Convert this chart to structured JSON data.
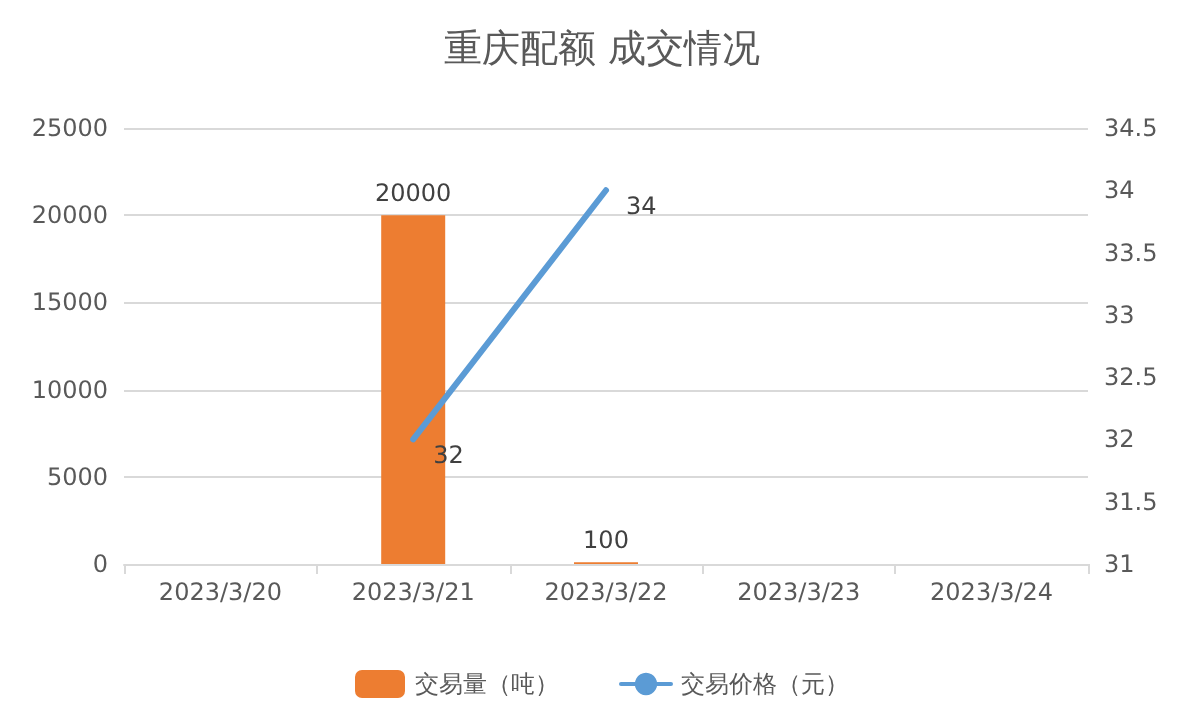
{
  "chart_data": {
    "type": "bar",
    "title": "重庆配额 成交情况",
    "categories": [
      "2023/3/20",
      "2023/3/21",
      "2023/3/22",
      "2023/3/23",
      "2023/3/24"
    ],
    "series": [
      {
        "name": "交易量（吨）",
        "type": "bar",
        "color": "#ed7d31",
        "values": [
          null,
          20000,
          100,
          null,
          null
        ]
      },
      {
        "name": "交易价格（元）",
        "type": "line",
        "axis": "y2",
        "color": "#5b9bd5",
        "values": [
          null,
          32,
          34,
          null,
          null
        ]
      }
    ],
    "ylim": [
      0,
      25000
    ],
    "yticks": [
      0,
      5000,
      10000,
      15000,
      20000,
      25000
    ],
    "y2lim": [
      31,
      34.5
    ],
    "y2ticks": [
      31,
      31.5,
      32,
      32.5,
      33,
      33.5,
      34,
      34.5
    ],
    "grid": "y",
    "legend": "bottom",
    "data_labels": true,
    "marker": "none",
    "line_style": "solid"
  }
}
